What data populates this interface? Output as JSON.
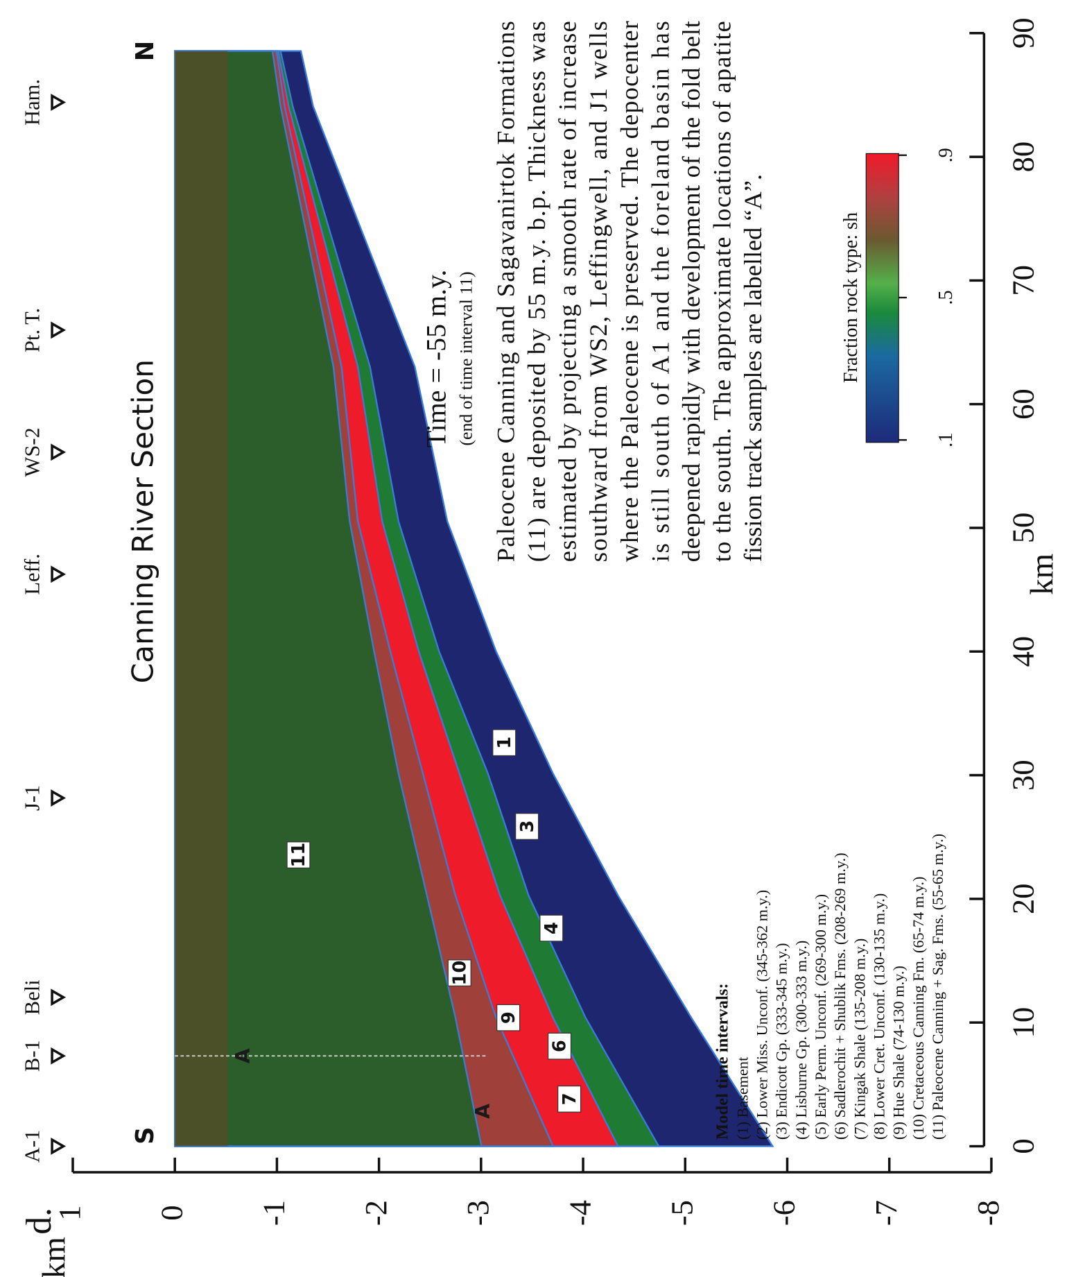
{
  "panel_label": "d.",
  "title": "Canning River Section",
  "ends": [
    "S",
    "N"
  ],
  "wells": [
    "A-1",
    "B-1",
    "Beli",
    "J-1",
    "Leff.",
    "WS-2",
    "Pt. T.",
    "Ham."
  ],
  "time": "Time = -55 m.y.",
  "time_note": "(end of time interval 11)",
  "caption": [
    "Paleocene Canning and Sagavanirtok Formations",
    "(11) are deposited by 55 m.y. b.p.  Thickness was",
    "estimated by projecting a smooth rate of increase",
    "southward from WS2, Leffingwell, and J1 wells",
    "where the Paleocene is preserved.  The depocenter",
    "is still south of A1 and the foreland basin has",
    "deepened rapidly with development of the fold belt",
    "to the south.  The approximate locations of apatite",
    "fission track samples are labelled “A”."
  ],
  "legend": {
    "title": "Model time intervals:",
    "items": [
      "(1) Basement",
      "(2) Lower Miss. Unconf. (345-362 m.y.)",
      "(3) Endicott Gp. (333-345 m.y.)",
      "(4) Lisburne Gp. (300-333 m.y.)",
      "(5) Early Perm. Unconf. (269-300 m.y.)",
      "(6) Sadlerochit + Shublik Fms.  (208-269 m.y.)",
      "(7) Kingak Shale (135-208 m.y.)",
      "(8) Lower Cret. Unconf. (130-135 m.y.)",
      "(9) Hue Shale (74-130 m.y.)",
      "(10) Cretaceous Canning Fm. (65-74 m.y.)",
      "(11) Paleocene Canning + Sag. Fms. (55-65 m.y.)"
    ]
  },
  "layer_labels": [
    "11",
    "10",
    "9",
    "7",
    "6",
    "4",
    "3",
    "1"
  ],
  "sample_label": "A",
  "colorbar": {
    "label": "Fraction rock type: sh",
    "ticks": [
      {
        "value": 0.1,
        "label": ".1"
      },
      {
        "value": 0.5,
        "label": ".5"
      },
      {
        "value": 0.9,
        "label": ".9"
      }
    ]
  },
  "x_axis": {
    "label": "km",
    "ticks": [
      0,
      10,
      20,
      30,
      40,
      50,
      60,
      70,
      80,
      90
    ]
  },
  "y_axis": {
    "label": "km",
    "ticks": [
      1,
      0,
      -1,
      -2,
      -3,
      -4,
      -5,
      -6,
      -7,
      -8
    ]
  }
}
